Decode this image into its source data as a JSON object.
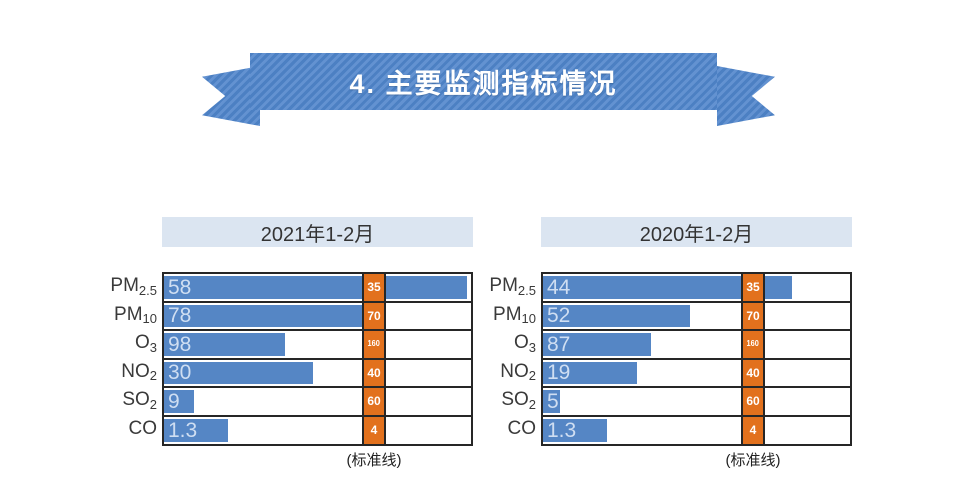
{
  "banner": {
    "title": "4. 主要监测指标情况"
  },
  "colors": {
    "banner_blue": "#4c80c3",
    "banner_stripe": "#6392d1",
    "bar_blue": "#5586c5",
    "bar_value_text": "#cfdef2",
    "standard_orange": "#e2711d",
    "grid_border": "#262626",
    "panel_title_bg": "#dbe5f1"
  },
  "chart_data": [
    {
      "type": "bar",
      "title": "2021年1-2月",
      "orientation": "horizontal",
      "categories": [
        "PM2.5",
        "PM10",
        "O3",
        "NO2",
        "SO2",
        "CO"
      ],
      "category_rich": [
        {
          "base": "PM",
          "sub": "2.5"
        },
        {
          "base": "PM",
          "sub": "10"
        },
        {
          "base": "O",
          "sub": "3"
        },
        {
          "base": "NO",
          "sub": "2"
        },
        {
          "base": "SO",
          "sub": "2"
        },
        {
          "base": "CO",
          "sub": ""
        }
      ],
      "values": [
        58,
        78,
        98,
        30,
        9,
        1.3
      ],
      "standards": [
        35,
        70,
        160,
        40,
        60,
        4
      ],
      "note": "(标准线)",
      "scale_note": "bar length proportional to value/standard; orange standard column sits at ratio 1.0; bars exceeding the standard continue past the column"
    },
    {
      "type": "bar",
      "title": "2020年1-2月",
      "orientation": "horizontal",
      "categories": [
        "PM2.5",
        "PM10",
        "O3",
        "NO2",
        "SO2",
        "CO"
      ],
      "category_rich": [
        {
          "base": "PM",
          "sub": "2.5"
        },
        {
          "base": "PM",
          "sub": "10"
        },
        {
          "base": "O",
          "sub": "3"
        },
        {
          "base": "NO",
          "sub": "2"
        },
        {
          "base": "SO",
          "sub": "2"
        },
        {
          "base": "CO",
          "sub": ""
        }
      ],
      "values": [
        44,
        52,
        87,
        19,
        5,
        1.3
      ],
      "standards": [
        35,
        70,
        160,
        40,
        60,
        4
      ],
      "note": "(标准线)",
      "scale_note": "bar length proportional to value/standard; orange standard column sits at ratio 1.0; bars exceeding the standard continue past the column"
    }
  ]
}
